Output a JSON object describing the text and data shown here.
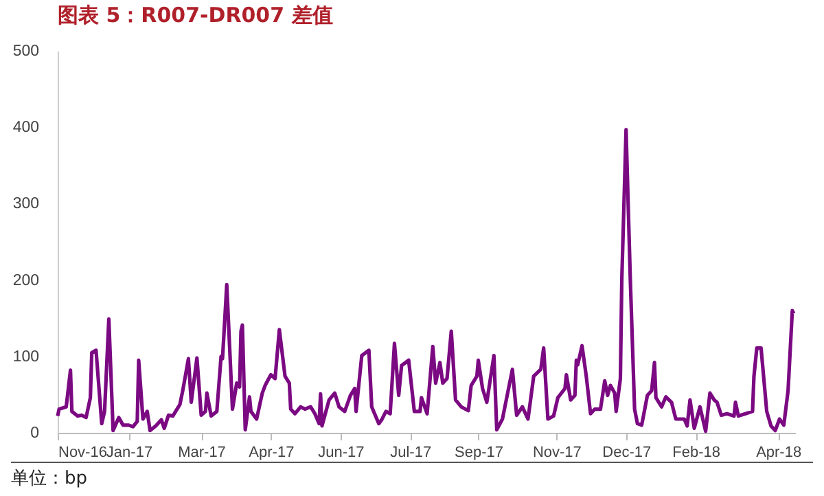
{
  "chart_data": {
    "type": "line",
    "title": "图表 5：R007-DR007 差值",
    "annotations": [
      "单位：bp"
    ],
    "x": [
      "2016-11-21",
      "2016-11-22",
      "2016-11-27",
      "2016-11-30",
      "2016-12-01",
      "2016-12-05",
      "2016-12-08",
      "2016-12-11",
      "2016-12-14",
      "2016-12-15",
      "2016-12-18",
      "2016-12-22",
      "2016-12-24",
      "2016-12-27",
      "2016-12-30",
      "2017-01-03",
      "2017-01-06",
      "2017-01-10",
      "2017-01-13",
      "2017-01-16",
      "2017-01-17",
      "2017-01-20",
      "2017-01-23",
      "2017-01-25",
      "2017-01-29",
      "2017-02-02",
      "2017-02-04",
      "2017-02-07",
      "2017-02-10",
      "2017-02-15",
      "2017-02-17",
      "2017-02-21",
      "2017-02-23",
      "2017-02-27",
      "2017-03-02",
      "2017-03-05",
      "2017-03-06",
      "2017-03-09",
      "2017-03-13",
      "2017-03-16",
      "2017-03-17",
      "2017-03-20",
      "2017-03-24",
      "2017-03-27",
      "2017-03-29",
      "2017-03-30",
      "2017-03-31",
      "2017-04-02",
      "2017-04-05",
      "2017-04-06",
      "2017-04-10",
      "2017-04-14",
      "2017-04-16",
      "2017-04-20",
      "2017-04-23",
      "2017-04-26",
      "2017-04-30",
      "2017-05-03",
      "2017-05-04",
      "2017-05-07",
      "2017-05-11",
      "2017-05-14",
      "2017-05-18",
      "2017-05-21",
      "2017-05-24",
      "2017-05-25",
      "2017-05-26",
      "2017-05-31",
      "2017-06-04",
      "2017-06-07",
      "2017-06-11",
      "2017-06-15",
      "2017-06-18",
      "2017-06-19",
      "2017-06-23",
      "2017-06-28",
      "2017-06-30",
      "2017-07-05",
      "2017-07-07",
      "2017-07-10",
      "2017-07-13",
      "2017-07-16",
      "2017-07-19",
      "2017-07-21",
      "2017-07-26",
      "2017-07-30",
      "2017-08-03",
      "2017-08-04",
      "2017-08-08",
      "2017-08-12",
      "2017-08-14",
      "2017-08-17",
      "2017-08-19",
      "2017-08-22",
      "2017-08-25",
      "2017-08-28",
      "2017-09-01",
      "2017-09-06",
      "2017-09-08",
      "2017-09-12",
      "2017-09-13",
      "2017-09-16",
      "2017-09-19",
      "2017-09-24",
      "2017-09-26",
      "2017-09-30",
      "2017-10-07",
      "2017-10-10",
      "2017-10-14",
      "2017-10-18",
      "2017-10-22",
      "2017-10-27",
      "2017-10-29",
      "2017-11-01",
      "2017-11-05",
      "2017-11-08",
      "2017-11-13",
      "2017-11-14",
      "2017-11-17",
      "2017-11-20",
      "2017-11-21",
      "2017-11-22",
      "2017-11-25",
      "2017-11-28",
      "2017-12-01",
      "2017-12-04",
      "2017-12-08",
      "2017-12-11",
      "2017-12-13",
      "2017-12-15",
      "2017-12-18",
      "2017-12-19",
      "2017-12-22",
      "2017-12-23",
      "2017-12-26",
      "2017-12-29",
      "2018-01-01",
      "2018-01-03",
      "2018-01-06",
      "2018-01-10",
      "2018-01-13",
      "2018-01-15",
      "2018-01-16",
      "2018-01-20",
      "2018-01-23",
      "2018-01-27",
      "2018-01-30",
      "2018-02-05",
      "2018-02-07",
      "2018-02-09",
      "2018-02-12",
      "2018-02-16",
      "2018-02-20",
      "2018-02-23",
      "2018-02-26",
      "2018-02-28",
      "2018-03-03",
      "2018-03-07",
      "2018-03-12",
      "2018-03-13",
      "2018-03-15",
      "2018-03-20",
      "2018-03-25",
      "2018-03-26",
      "2018-03-28",
      "2018-03-31",
      "2018-04-04",
      "2018-04-07",
      "2018-04-10",
      "2018-04-13",
      "2018-04-16",
      "2018-04-19",
      "2018-04-22",
      "2018-04-23"
    ],
    "series": [
      {
        "color": "#7b0a82",
        "values": [
          22,
          31,
          34,
          82,
          28,
          22,
          23,
          20,
          46,
          105,
          108,
          12,
          28,
          149,
          3,
          20,
          10,
          10,
          8,
          15,
          95,
          18,
          28,
          3,
          9,
          17,
          6,
          23,
          22,
          37,
          55,
          97,
          40,
          98,
          23,
          28,
          52,
          22,
          28,
          100,
          97,
          194,
          31,
          65,
          60,
          133,
          141,
          4,
          47,
          28,
          18,
          52,
          62,
          76,
          71,
          135,
          74,
          65,
          31,
          25,
          34,
          31,
          34,
          25,
          12,
          51,
          9,
          43,
          52,
          34,
          28,
          49,
          58,
          28,
          101,
          108,
          34,
          12,
          17,
          28,
          25,
          117,
          49,
          88,
          95,
          28,
          28,
          46,
          25,
          113,
          65,
          92,
          65,
          71,
          133,
          43,
          34,
          29,
          62,
          74,
          95,
          58,
          40,
          101,
          4,
          18,
          83,
          23,
          34,
          18,
          74,
          83,
          111,
          18,
          22,
          46,
          58,
          76,
          43,
          49,
          95,
          89,
          114,
          74,
          25,
          31,
          31,
          68,
          49,
          62,
          52,
          28,
          71,
          200,
          397,
          200,
          31,
          12,
          10,
          49,
          55,
          92,
          46,
          34,
          47,
          40,
          18,
          18,
          9,
          43,
          6,
          34,
          2,
          52,
          43,
          40,
          23,
          25,
          22,
          40,
          22,
          25,
          28,
          74,
          111,
          111,
          28,
          9,
          3,
          18,
          10,
          55,
          160,
          156
        ]
      }
    ],
    "xlim": [
      "2016-11-21",
      "2018-04-24"
    ],
    "xticks": [
      {
        "value": "2016-11-21",
        "label": "Nov-16"
      },
      {
        "value": "2017-01-10",
        "label": "Jan-17"
      },
      {
        "value": "2017-03-02",
        "label": "Mar-17"
      },
      {
        "value": "2017-04-20",
        "label": "Apr-17"
      },
      {
        "value": "2017-06-08",
        "label": "Jun-17"
      },
      {
        "value": "2017-07-27",
        "label": "Jul-17"
      },
      {
        "value": "2017-09-13",
        "label": "Sep-17"
      },
      {
        "value": "2017-11-07",
        "label": "Nov-17"
      },
      {
        "value": "2017-12-26",
        "label": "Dec-17"
      },
      {
        "value": "2018-02-13",
        "label": "Feb-18"
      },
      {
        "value": "2018-04-12",
        "label": "Apr-18"
      }
    ],
    "ylim": [
      0,
      500
    ],
    "yticks": [
      0,
      100,
      200,
      300,
      400,
      500
    ],
    "grid": false,
    "marker": "none",
    "line_style": "solid"
  }
}
